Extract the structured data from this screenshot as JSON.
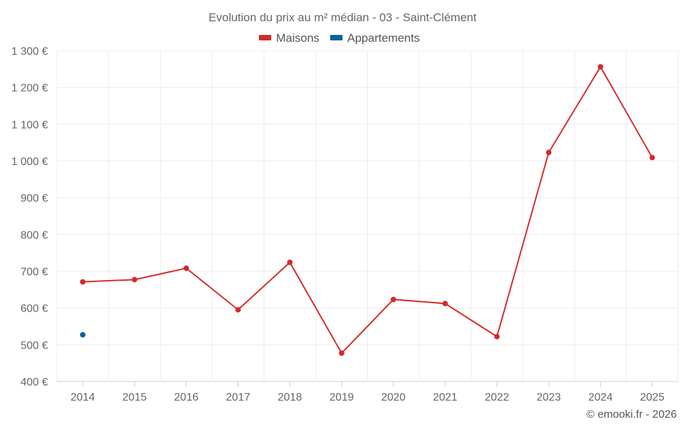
{
  "chart_data": {
    "type": "line",
    "title": "Evolution du prix au m² médian - 03 - Saint-Clément",
    "xlabel": "",
    "ylabel": "",
    "categories": [
      "2014",
      "2015",
      "2016",
      "2017",
      "2018",
      "2019",
      "2020",
      "2021",
      "2022",
      "2023",
      "2024",
      "2025"
    ],
    "ylim": [
      400,
      1300
    ],
    "yticks": [
      400,
      500,
      600,
      700,
      800,
      900,
      1000,
      1100,
      1200,
      1300
    ],
    "ytick_labels": [
      "400 €",
      "500 €",
      "600 €",
      "700 €",
      "800 €",
      "900 €",
      "1 000 €",
      "1 100 €",
      "1 200 €",
      "1 300 €"
    ],
    "grid": true,
    "legend_position": "top-center",
    "series": [
      {
        "name": "Maisons",
        "color": "#d42a2a",
        "values": [
          671,
          677,
          708,
          595,
          724,
          477,
          623,
          612,
          522,
          1023,
          1256,
          1009
        ]
      },
      {
        "name": "Appartements",
        "color": "#0a6296",
        "values": [
          527,
          null,
          null,
          null,
          null,
          null,
          null,
          null,
          null,
          null,
          null,
          null
        ]
      }
    ],
    "credit": "© emooki.fr - 2026"
  }
}
